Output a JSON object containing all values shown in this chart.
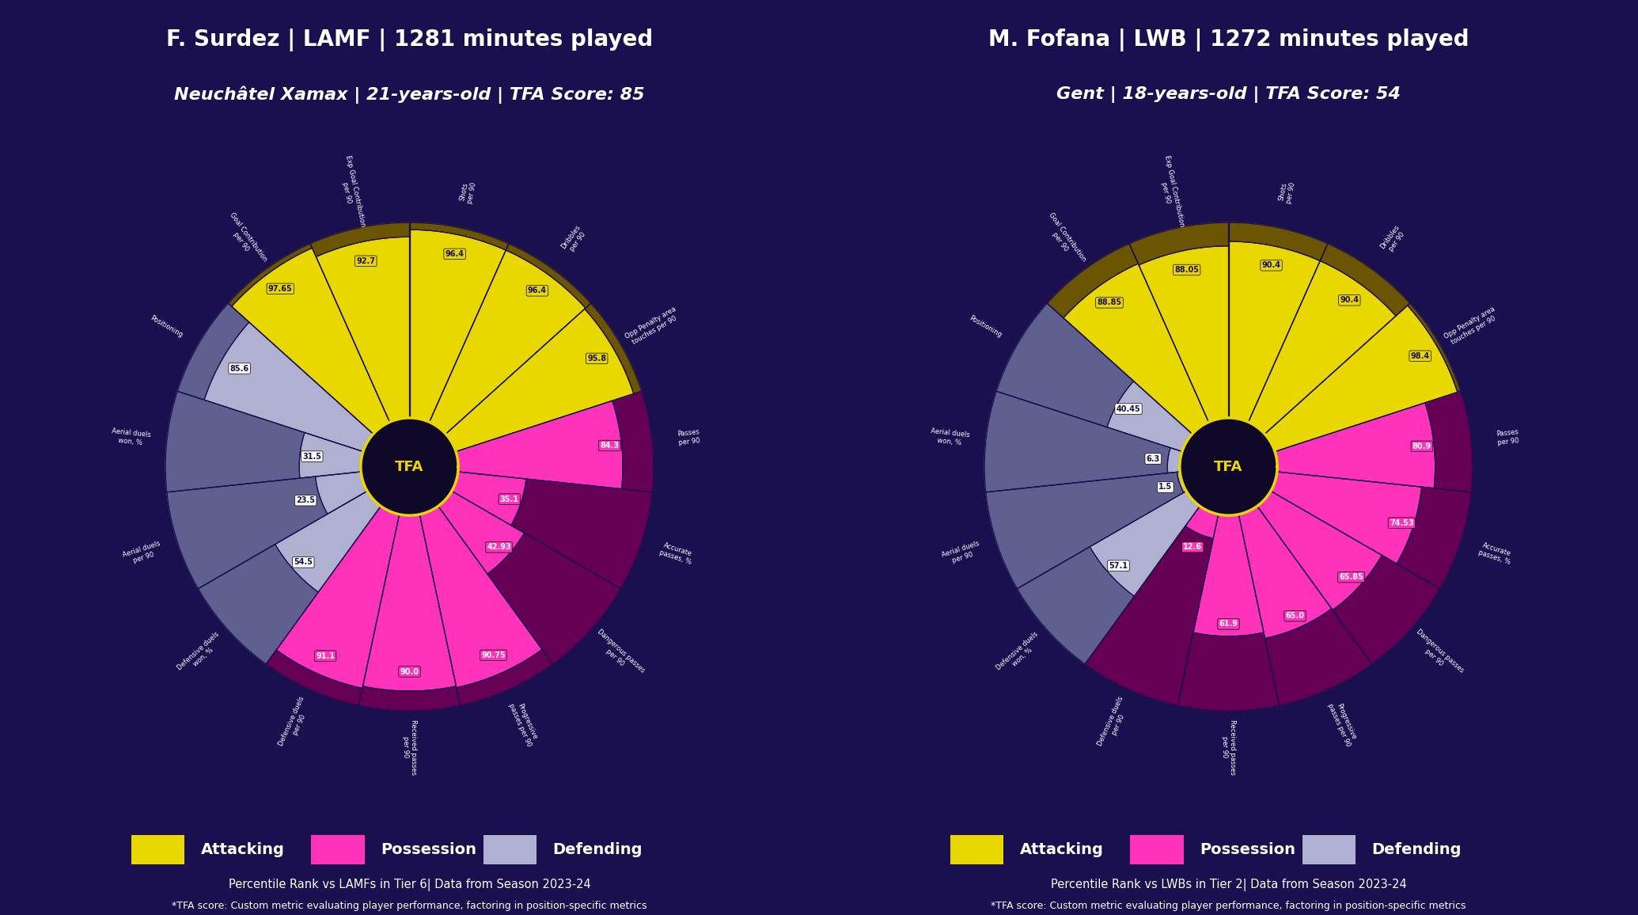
{
  "background_color": "#1a1050",
  "player1": {
    "name": "F. Surdez",
    "position": "LAMF",
    "minutes": "1281 minutes played",
    "team": "Neuchâtel Xamax",
    "age": "21-years-old",
    "tfa_score": "85",
    "comparison": "LAMFs in Tier 6",
    "categories": [
      "Aerial duels\nwon, %",
      "Aerial duels\nper 90",
      "Defensive duels\nwon, %",
      "Defensive duels\nper 90",
      "Received passes\nper 90",
      "Progressive\npasses per 90",
      "Dangerous passes\nper 90",
      "Accurate\npasses, %",
      "Passes\nper 90",
      "Opp Penalty area\ntouches per 90",
      "Dribbles\nper 90",
      "Shots\nper 90",
      "Exp Goal Contribution\nper 90",
      "Goal Contribution\nper 90",
      "Positioning"
    ],
    "values": [
      31.5,
      23.5,
      54.5,
      91.1,
      90.0,
      90.75,
      42.93,
      35.1,
      84.3,
      95.8,
      96.4,
      96.4,
      92.7,
      97.65,
      85.6
    ],
    "cat_types": [
      "defending",
      "defending",
      "defending",
      "possession",
      "possession",
      "possession",
      "possession",
      "possession",
      "possession",
      "attacking",
      "attacking",
      "attacking",
      "attacking",
      "attacking",
      "defending"
    ]
  },
  "player2": {
    "name": "M. Fofana",
    "position": "LWB",
    "minutes": "1272 minutes played",
    "team": "Gent",
    "age": "18-years-old",
    "tfa_score": "54",
    "comparison": "LWBs in Tier 2",
    "categories": [
      "Aerial duels\nwon, %",
      "Aerial duels\nper 90",
      "Defensive duels\nwon, %",
      "Defensive duels\nper 90",
      "Received passes\nper 90",
      "Progressive\npasses per 90",
      "Dangerous passes\nper 90",
      "Accurate\npasses, %",
      "Passes\nper 90",
      "Opp Penalty area\ntouches per 90",
      "Dribbles\nper 90",
      "Shots\nper 90",
      "Exp Goal Contribution\nper 90",
      "Goal Contribution\nper 90",
      "Positioning"
    ],
    "values": [
      6.3,
      1.5,
      57.1,
      12.6,
      61.9,
      65.0,
      65.85,
      74.53,
      80.9,
      98.4,
      90.4,
      90.4,
      88.05,
      88.85,
      40.45
    ],
    "cat_types": [
      "defending",
      "defending",
      "defending",
      "possession",
      "possession",
      "possession",
      "possession",
      "possession",
      "possession",
      "attacking",
      "attacking",
      "attacking",
      "attacking",
      "attacking",
      "defending"
    ]
  },
  "color_map": {
    "attacking": "#e8d800",
    "attacking_dark": "#6b5500",
    "possession_high": "#ff33bb",
    "possession_low": "#660055",
    "defending_high": "#b0b0d0",
    "defending_low": "#606090"
  },
  "legend": [
    {
      "label": "Attacking",
      "color": "#e8d800"
    },
    {
      "label": "Possession",
      "color": "#ff33bb"
    },
    {
      "label": "Defending",
      "color": "#b0b0d0"
    }
  ]
}
